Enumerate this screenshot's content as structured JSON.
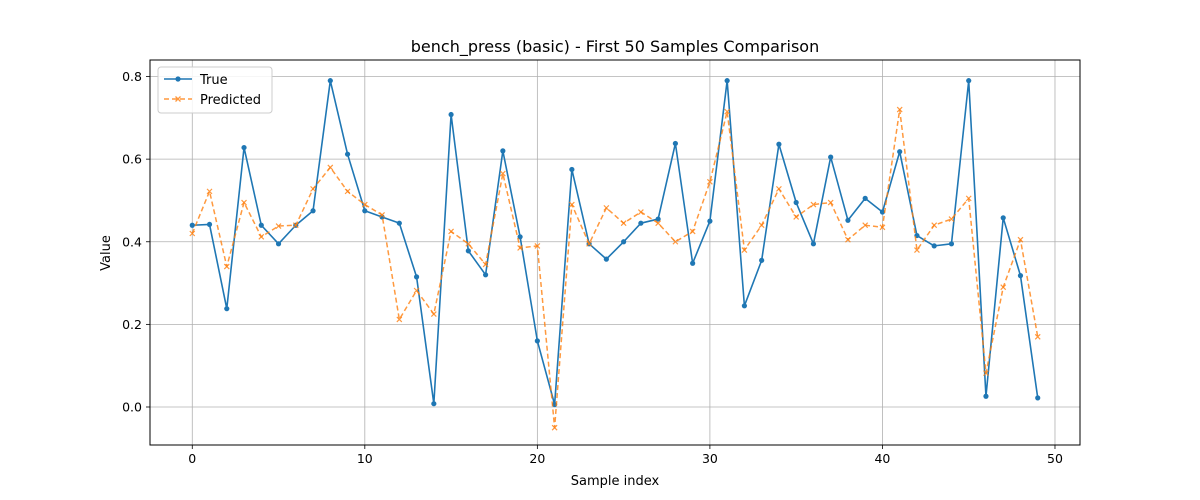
{
  "chart_data": {
    "type": "line",
    "title": "bench_press (basic) - First 50 Samples Comparison",
    "xlabel": "Sample index",
    "ylabel": "Value",
    "xlim": [
      -2.45,
      51.45
    ],
    "ylim": [
      -0.092,
      0.84
    ],
    "xticks": [
      0,
      10,
      20,
      30,
      40,
      50
    ],
    "yticks": [
      0.0,
      0.2,
      0.4,
      0.6,
      0.8
    ],
    "ytick_labels": [
      "0.0",
      "0.2",
      "0.4",
      "0.6",
      "0.8"
    ],
    "grid": true,
    "legend_position": "top-left",
    "x": [
      0,
      1,
      2,
      3,
      4,
      5,
      6,
      7,
      8,
      9,
      10,
      11,
      12,
      13,
      14,
      15,
      16,
      17,
      18,
      19,
      20,
      21,
      22,
      23,
      24,
      25,
      26,
      27,
      28,
      29,
      30,
      31,
      32,
      33,
      34,
      35,
      36,
      37,
      38,
      39,
      40,
      41,
      42,
      43,
      44,
      45,
      46,
      47,
      48,
      49
    ],
    "series": [
      {
        "name": "True",
        "color": "#1f77b4",
        "marker": "circle",
        "linestyle": "solid",
        "values": [
          0.44,
          0.442,
          0.238,
          0.628,
          0.44,
          0.395,
          0.44,
          0.475,
          0.79,
          0.612,
          0.475,
          0.46,
          0.445,
          0.315,
          0.008,
          0.708,
          0.378,
          0.32,
          0.62,
          0.412,
          0.16,
          0.006,
          0.575,
          0.395,
          0.358,
          0.4,
          0.445,
          0.455,
          0.638,
          0.348,
          0.45,
          0.79,
          0.245,
          0.355,
          0.636,
          0.495,
          0.395,
          0.605,
          0.452,
          0.505,
          0.472,
          0.618,
          0.415,
          0.39,
          0.395,
          0.79,
          0.026,
          0.458,
          0.318,
          0.022
        ]
      },
      {
        "name": "Predicted",
        "color": "#ff7f0e",
        "marker": "x",
        "linestyle": "dashed",
        "values": [
          0.42,
          0.522,
          0.34,
          0.495,
          0.412,
          0.438,
          0.44,
          0.528,
          0.58,
          0.522,
          0.49,
          0.465,
          0.212,
          0.282,
          0.225,
          0.425,
          0.395,
          0.345,
          0.565,
          0.385,
          0.39,
          -0.05,
          0.49,
          0.395,
          0.482,
          0.445,
          0.472,
          0.445,
          0.4,
          0.425,
          0.545,
          0.715,
          0.38,
          0.44,
          0.528,
          0.46,
          0.49,
          0.495,
          0.405,
          0.44,
          0.435,
          0.72,
          0.38,
          0.44,
          0.455,
          0.505,
          0.082,
          0.29,
          0.405,
          0.17
        ]
      }
    ]
  }
}
